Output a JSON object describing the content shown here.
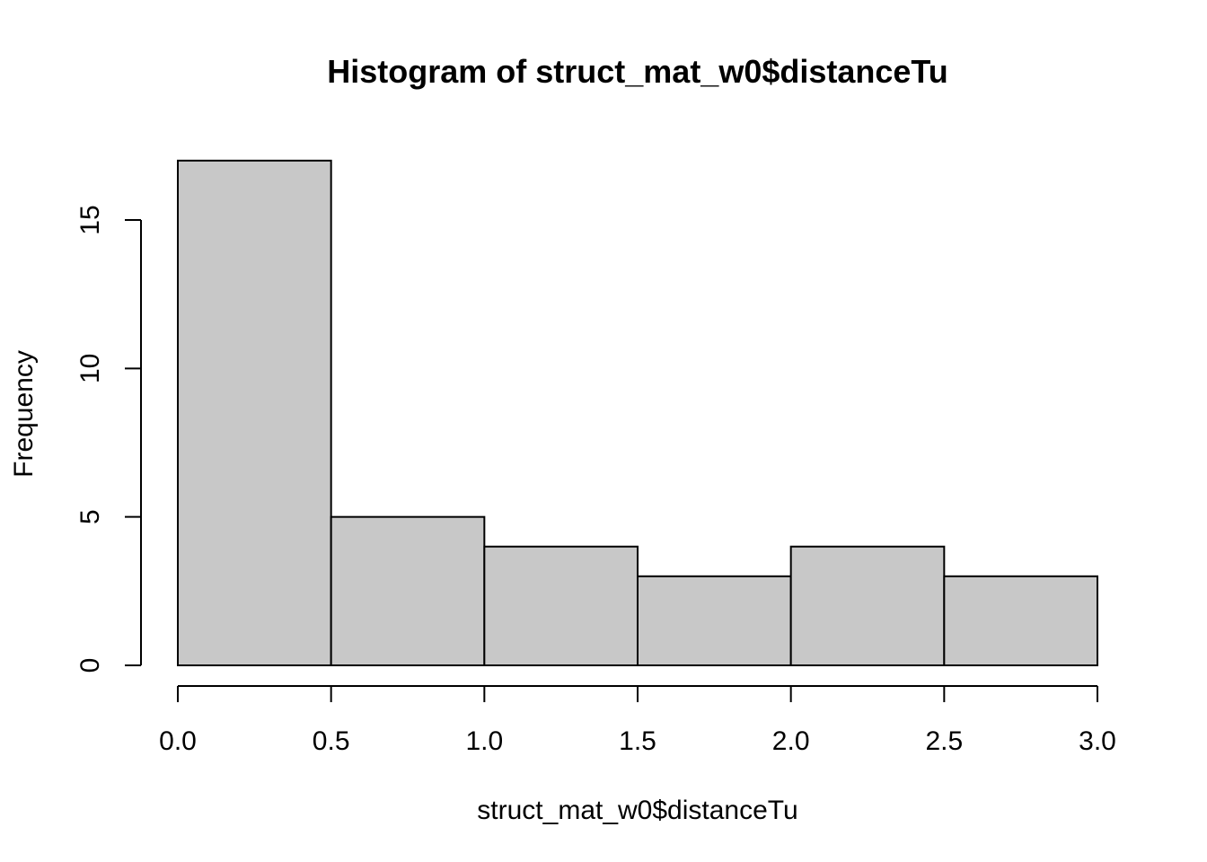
{
  "chart_data": {
    "type": "bar",
    "title": "Histogram of struct_mat_w0$distanceTu",
    "xlabel": "struct_mat_w0$distanceTu",
    "ylabel": "Frequency",
    "bins": [
      {
        "start": 0.0,
        "end": 0.5,
        "count": 17
      },
      {
        "start": 0.5,
        "end": 1.0,
        "count": 5
      },
      {
        "start": 1.0,
        "end": 1.5,
        "count": 4
      },
      {
        "start": 1.5,
        "end": 2.0,
        "count": 3
      },
      {
        "start": 2.0,
        "end": 2.5,
        "count": 4
      },
      {
        "start": 2.5,
        "end": 3.0,
        "count": 3
      }
    ],
    "xlim": [
      0,
      3
    ],
    "ylim": [
      0,
      17
    ],
    "x_ticks": [
      "0.0",
      "0.5",
      "1.0",
      "1.5",
      "2.0",
      "2.5",
      "3.0"
    ],
    "y_ticks": [
      "0",
      "5",
      "10",
      "15"
    ],
    "bar_color": "#c8c8c8",
    "grid": false
  }
}
